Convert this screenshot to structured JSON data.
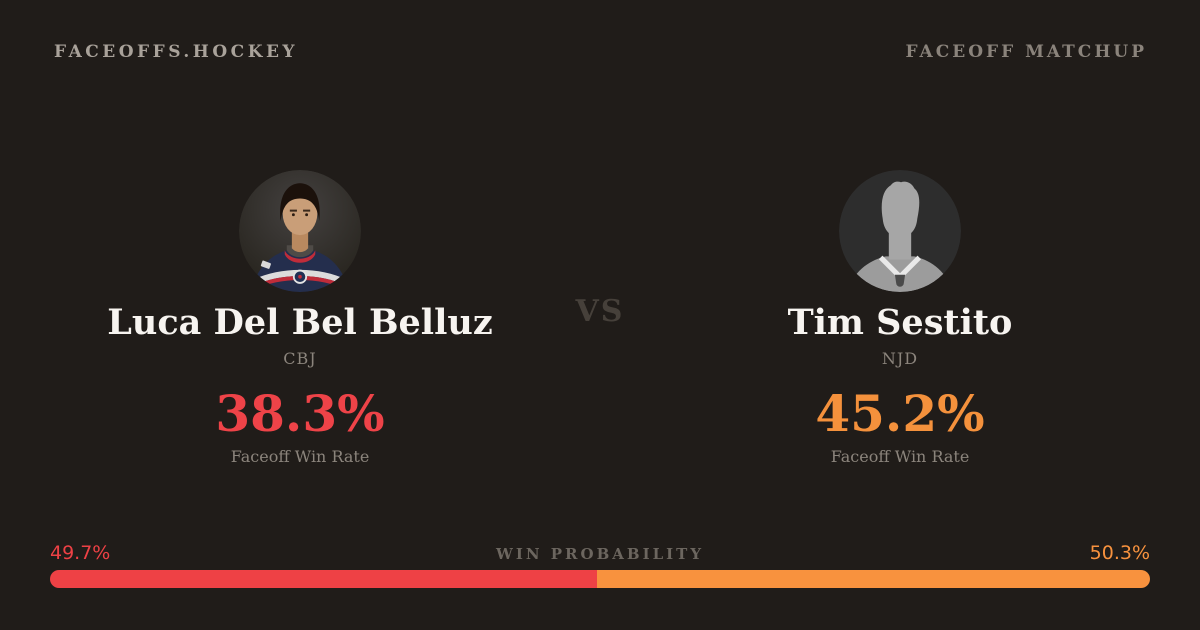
{
  "page": {
    "background": "#201c19"
  },
  "header": {
    "brand": "FACEOFFS.HOCKEY",
    "page_label": "FACEOFF MATCHUP"
  },
  "matchup": {
    "vs_label": "VS",
    "players": [
      {
        "name": "Luca Del Bel Belluz",
        "team": "CBJ",
        "win_rate": "38.3%",
        "stat_label": "Faceoff Win Rate",
        "accent": "#ee4348"
      },
      {
        "name": "Tim Sestito",
        "team": "NJD",
        "win_rate": "45.2%",
        "stat_label": "Faceoff Win Rate",
        "accent": "#f4913c"
      }
    ]
  },
  "win_probability": {
    "label": "WIN PROBABILITY",
    "left": {
      "value": "49.7%",
      "pct": 49.7,
      "color": "#ee4145"
    },
    "right": {
      "value": "50.3%",
      "pct": 50.3,
      "color": "#f8923e"
    }
  }
}
